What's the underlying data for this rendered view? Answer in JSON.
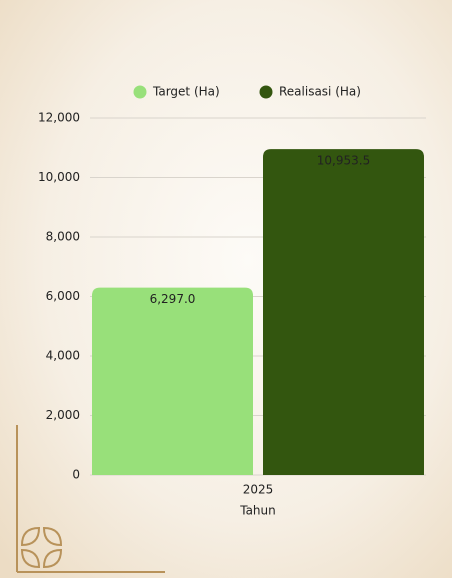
{
  "chart_data": {
    "type": "bar",
    "xlabel": "Tahun",
    "categories": [
      "2025"
    ],
    "series": [
      {
        "name": "Target (Ha)",
        "color": "#98e07a",
        "values": [
          6297.0
        ],
        "value_labels": [
          "6,297.0"
        ]
      },
      {
        "name": "Realisasi (Ha)",
        "color": "#33560f",
        "values": [
          10953.5
        ],
        "value_labels": [
          "10,953.5"
        ]
      }
    ],
    "ylim": [
      0,
      12000
    ],
    "yticks": [
      0,
      {
        "value": 2000,
        "label": "2,000"
      },
      {
        "value": 4000,
        "label": "4,000"
      },
      {
        "value": 6000,
        "label": "6,000"
      },
      {
        "value": 8000,
        "label": "8,000"
      },
      {
        "value": 10000,
        "label": "10,000"
      },
      {
        "value": 12000,
        "label": "12,000"
      }
    ],
    "grid": true,
    "legend": "top"
  }
}
